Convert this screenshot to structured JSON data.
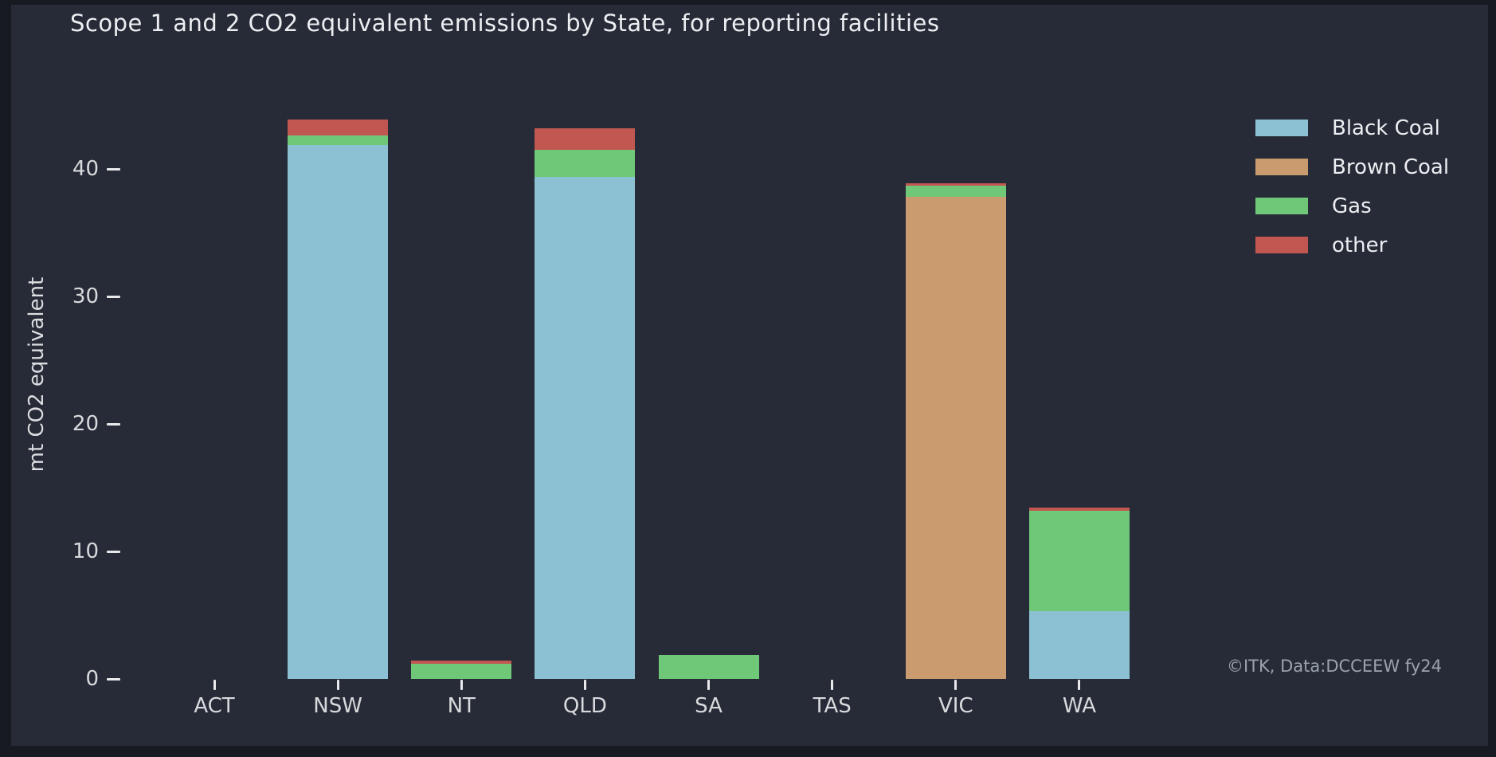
{
  "window": {
    "background": "#272b37",
    "frame": "#171a21"
  },
  "chart_data": {
    "type": "bar",
    "stacked": true,
    "title": "Scope 1 and 2 CO2 equivalent emissions by State, for reporting facilities",
    "xlabel": "",
    "ylabel": "mt CO2 equivalent",
    "categories": [
      "ACT",
      "NSW",
      "NT",
      "QLD",
      "SA",
      "TAS",
      "VIC",
      "WA"
    ],
    "series": [
      {
        "name": "Black Coal",
        "color": "#8cc1d3",
        "values": [
          0,
          41.9,
          0,
          39.4,
          0,
          0,
          0,
          5.3
        ]
      },
      {
        "name": "Brown Coal",
        "color": "#c99b6e",
        "values": [
          0,
          0,
          0,
          0,
          0,
          0,
          37.8,
          0
        ]
      },
      {
        "name": "Gas",
        "color": "#6fc877",
        "values": [
          0,
          0.75,
          1.2,
          2.1,
          1.9,
          0,
          0.9,
          7.9
        ]
      },
      {
        "name": "other",
        "color": "#c25752",
        "values": [
          0,
          1.2,
          0.25,
          1.7,
          0,
          0,
          0.2,
          0.25
        ]
      }
    ],
    "totals": [
      0,
      43.85,
      1.45,
      43.2,
      1.9,
      0,
      38.9,
      13.45
    ],
    "y_ticks": [
      0,
      10,
      20,
      30,
      40
    ],
    "ylim": [
      0,
      47
    ],
    "grid": false,
    "legend_position": "upper right",
    "annotation": "©ITK, Data:DCCEEW fy24",
    "colors": {
      "text": "#eceef1",
      "tick_labels": "#d9dadd",
      "tick_marks": "#e8e9eb",
      "annotation_text": "#9aa3ad"
    }
  }
}
